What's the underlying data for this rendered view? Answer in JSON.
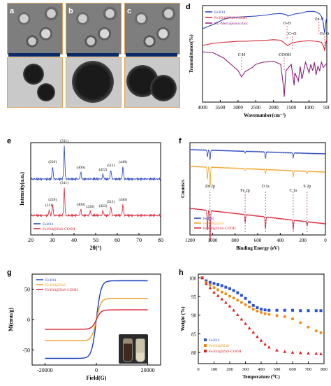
{
  "panel_letters": {
    "a": "a",
    "b": "b",
    "c": "c",
    "d": "d",
    "e": "e",
    "f": "f",
    "g": "g",
    "h": "h"
  },
  "chart_data": [
    {
      "id": "d",
      "type": "line",
      "title": "",
      "xlabel": "Wavenumber(cm⁻¹)",
      "ylabel": "Transmittance(%)",
      "xlim": [
        4000,
        500
      ],
      "x_ticks": [
        "4000",
        "3500",
        "3000",
        "2500",
        "2000",
        "1500",
        "1000",
        "500"
      ],
      "grid": false,
      "legend_position": "top-left",
      "series": [
        {
          "name": "Fe3O4",
          "color": "#1f3fbf",
          "x": [
            4000,
            3700,
            3400,
            3200,
            3000,
            2800,
            2500,
            2200,
            2000,
            1800,
            1650,
            1600,
            1500,
            1400,
            1200,
            1100,
            1000,
            900,
            800,
            700,
            620,
            580,
            560,
            520,
            500
          ],
          "y": [
            70,
            74,
            79,
            81,
            81,
            81.5,
            82,
            83,
            84,
            84.5,
            83.5,
            82,
            83,
            84,
            85,
            86,
            86.5,
            86.5,
            86,
            84,
            80,
            70,
            66,
            78,
            80
          ]
        },
        {
          "name": "Fe3O4@ZnS-COOH",
          "color": "#d22030",
          "x": [
            4000,
            3700,
            3400,
            3200,
            3000,
            2800,
            2500,
            2200,
            2000,
            1800,
            1720,
            1650,
            1600,
            1500,
            1400,
            1200,
            1000,
            800,
            650,
            580,
            560,
            520,
            500
          ],
          "y": [
            54,
            56,
            57,
            57.5,
            58,
            58,
            58.5,
            59,
            59.5,
            59,
            57,
            55,
            54,
            56,
            57,
            58,
            58.5,
            58,
            57,
            52,
            49,
            58,
            59
          ]
        },
        {
          "name": "DL-Mercaptosuccinic",
          "color": "#8a1f78",
          "x": [
            4000,
            3700,
            3400,
            3200,
            3000,
            2900,
            2800,
            2600,
            2500,
            2300,
            2000,
            1800,
            1720,
            1700,
            1650,
            1500,
            1420,
            1400,
            1300,
            1250,
            1200,
            1150,
            1100,
            1000,
            950,
            900,
            850,
            800,
            750,
            700,
            650,
            600,
            550,
            500
          ],
          "y": [
            48,
            47,
            42,
            36,
            30,
            24,
            29,
            33,
            36,
            38,
            39,
            36,
            15,
            5,
            30,
            36,
            16,
            28,
            20,
            34,
            22,
            30,
            38,
            28,
            36,
            30,
            38,
            26,
            34,
            30,
            38,
            33,
            35,
            37
          ]
        }
      ],
      "annotations": [
        {
          "text": "O-H",
          "x": 1620,
          "y": 74
        },
        {
          "text": "C=O",
          "x": 1470,
          "y": 64
        },
        {
          "text": "Zn-S",
          "x": 720,
          "y": 78
        },
        {
          "text": "Fe-O",
          "x": 560,
          "y": 64
        },
        {
          "text": "C-H",
          "x": 2900,
          "y": 44
        },
        {
          "text": "-COOH",
          "x": 1700,
          "y": 44
        }
      ]
    },
    {
      "id": "e",
      "type": "line",
      "title": "",
      "xlabel": "2θ(°)",
      "ylabel": "Intensity(a.u.)",
      "xlim": [
        20,
        80
      ],
      "x_ticks": [
        "20",
        "30",
        "40",
        "50",
        "60",
        "70",
        "80"
      ],
      "grid": false,
      "legend_position": "bottom-left",
      "series": [
        {
          "name": "Fe3O4",
          "color": "#1f3fbf",
          "peaks": [
            [
              30.1,
              "(220)",
              18
            ],
            [
              35.5,
              "(311)",
              48
            ],
            [
              43.1,
              "(400)",
              10
            ],
            [
              53.4,
              "(422)",
              7
            ],
            [
              57.0,
              "(511)",
              13
            ],
            [
              62.6,
              "(440)",
              18
            ]
          ]
        },
        {
          "name": "Fe3O4@ZnS-COOH",
          "color": "#d22030",
          "peaks": [
            [
              28.6,
              "(111)",
              8
            ],
            [
              30.1,
              "(220)",
              16
            ],
            [
              35.5,
              "(311)",
              40
            ],
            [
              43.1,
              "(400)",
              9
            ],
            [
              47.5,
              "(220)",
              6
            ],
            [
              53.4,
              "(422)",
              7
            ],
            [
              57.0,
              "(511)",
              13
            ],
            [
              62.6,
              "(440)",
              16
            ]
          ]
        }
      ]
    },
    {
      "id": "f",
      "type": "line",
      "title": "",
      "xlabel": "Binding Energy (eV)",
      "ylabel": "Counts/s",
      "xlim": [
        1200,
        0
      ],
      "x_ticks": [
        "1200",
        "1000",
        "800",
        "600",
        "400",
        "200",
        "0"
      ],
      "grid": false,
      "legend_position": "bottom-left",
      "series": [
        {
          "name": "Fe3O4",
          "color": "#1f3fbf"
        },
        {
          "name": "Fe3O4@ZnS",
          "color": "#f0a020"
        },
        {
          "name": "Fe3O4@ZnS-COOH",
          "color": "#d22030"
        }
      ],
      "annotations": [
        {
          "text": "Zn 2p",
          "x": 1022
        },
        {
          "text": "Fe 2p",
          "x": 711
        },
        {
          "text": "O 1s",
          "x": 531
        },
        {
          "text": "C 1s",
          "x": 285
        },
        {
          "text": "S 2p",
          "x": 162
        }
      ]
    },
    {
      "id": "g",
      "type": "line",
      "title": "",
      "xlabel": "Field(G)",
      "ylabel": "M(emu/g)",
      "xlim": [
        -25000,
        25000
      ],
      "ylim": [
        -75,
        75
      ],
      "x_ticks": [
        "-20000",
        "0",
        "20000"
      ],
      "y_ticks": [
        "-50",
        "0",
        "50"
      ],
      "grid": false,
      "legend_position": "top-left",
      "series": [
        {
          "name": "Fe3O4",
          "color": "#1f3fbf",
          "ms": 64
        },
        {
          "name": "Fe3O4@ZnS",
          "color": "#f0a020",
          "ms": 35
        },
        {
          "name": "Fe3O4@ZnS-COOH",
          "color": "#d22030",
          "ms": 16
        }
      ]
    },
    {
      "id": "h",
      "type": "scatter",
      "title": "",
      "xlabel": "Temperature (⁰C)",
      "ylabel": "Weight (%)",
      "xlim": [
        0,
        800
      ],
      "ylim": [
        77,
        101
      ],
      "x_ticks": [
        "0",
        "100",
        "200",
        "300",
        "400",
        "500",
        "600",
        "700",
        "800"
      ],
      "y_ticks": [
        "80",
        "85",
        "90",
        "95",
        "100"
      ],
      "grid": false,
      "legend_position": "bottom-left",
      "series": [
        {
          "name": "Fe3O4",
          "color": "#2a4fd0",
          "marker": "square",
          "x": [
            25,
            50,
            75,
            100,
            125,
            150,
            175,
            200,
            225,
            250,
            275,
            300,
            325,
            350,
            375,
            400,
            425,
            450,
            500,
            550,
            600,
            650,
            700,
            750,
            780
          ],
          "y": [
            100,
            99.2,
            98.8,
            98.5,
            98.2,
            97.9,
            97.5,
            97.1,
            96.6,
            96,
            95.3,
            94.5,
            93.5,
            92.6,
            92,
            91.6,
            91.4,
            91.3,
            91.3,
            91.3,
            91.3,
            91.2,
            91.2,
            91.2,
            91.2
          ]
        },
        {
          "name": "Fe3O4@ZnS",
          "color": "#f08a10",
          "marker": "circle",
          "x": [
            25,
            50,
            75,
            100,
            125,
            150,
            175,
            200,
            225,
            250,
            275,
            300,
            325,
            350,
            375,
            400,
            425,
            450,
            500,
            550,
            600,
            650,
            700,
            750,
            780
          ],
          "y": [
            100,
            98.8,
            98.1,
            97.4,
            96.8,
            96.2,
            95.7,
            95.1,
            94.6,
            94,
            93.4,
            92.8,
            92.2,
            91.6,
            91.1,
            90.7,
            90.4,
            90.2,
            89.9,
            89.6,
            89,
            88,
            86.8,
            85.8,
            85.3
          ]
        },
        {
          "name": "Fe3O4@ZnS-COOH",
          "color": "#d62020",
          "marker": "triangle",
          "x": [
            25,
            50,
            75,
            100,
            125,
            150,
            175,
            200,
            225,
            250,
            275,
            300,
            325,
            350,
            375,
            400,
            425,
            450,
            500,
            550,
            600,
            650,
            700,
            750,
            780
          ],
          "y": [
            100,
            98.4,
            97.3,
            96.1,
            95.2,
            94.3,
            93.4,
            92.4,
            91.3,
            90.1,
            88.9,
            87.7,
            86.5,
            85.4,
            84.2,
            83.2,
            82.2,
            81.4,
            80.6,
            80.2,
            80,
            79.9,
            79.8,
            79.7,
            79.6
          ]
        }
      ]
    }
  ]
}
